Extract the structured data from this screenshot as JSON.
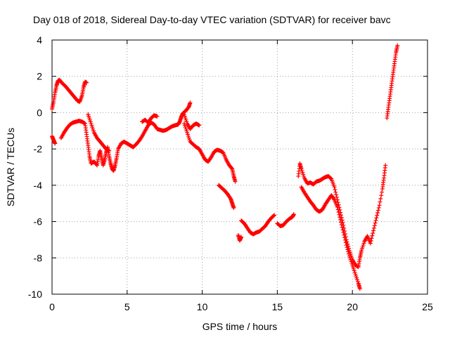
{
  "chart_data": {
    "type": "scatter",
    "title": "Day 018 of 2018, Sidereal Day-to-day VTEC variation (SDTVAR) for receiver bavc",
    "xlabel": "GPS time / hours",
    "ylabel": "SDTVAR / TECUs",
    "xlim": [
      0,
      25
    ],
    "ylim": [
      -10,
      4
    ],
    "xticks": [
      0,
      5,
      10,
      15,
      20,
      25
    ],
    "yticks": [
      -10,
      -8,
      -6,
      -4,
      -2,
      0,
      2,
      4
    ],
    "xtick_labels": [
      "0",
      "5",
      "10",
      "15",
      "20",
      "25"
    ],
    "ytick_labels": [
      "-10",
      "-8",
      "-6",
      "-4",
      "-2",
      "0",
      "2",
      "4"
    ],
    "grid": true,
    "marker": "+",
    "series": [
      {
        "name": "SDTVAR",
        "color": "#ff0000",
        "segments": [
          [
            [
              0.0,
              0.2
            ],
            [
              0.1,
              0.6
            ],
            [
              0.2,
              1.1
            ],
            [
              0.3,
              1.5
            ],
            [
              0.4,
              1.75
            ],
            [
              0.5,
              1.8
            ],
            [
              0.7,
              1.6
            ],
            [
              0.9,
              1.45
            ],
            [
              1.1,
              1.25
            ],
            [
              1.3,
              1.05
            ],
            [
              1.5,
              0.85
            ],
            [
              1.7,
              0.65
            ],
            [
              1.85,
              0.6
            ],
            [
              2.0,
              0.95
            ],
            [
              2.1,
              1.4
            ],
            [
              2.2,
              1.7
            ],
            [
              2.3,
              1.65
            ]
          ],
          [
            [
              0.0,
              -1.3
            ],
            [
              0.1,
              -1.5
            ],
            [
              0.2,
              -1.7
            ]
          ],
          [
            [
              0.6,
              -1.4
            ],
            [
              0.8,
              -1.1
            ],
            [
              1.0,
              -0.85
            ],
            [
              1.2,
              -0.65
            ],
            [
              1.4,
              -0.55
            ],
            [
              1.6,
              -0.5
            ],
            [
              1.8,
              -0.45
            ],
            [
              2.0,
              -0.5
            ],
            [
              2.2,
              -0.6
            ],
            [
              2.3,
              -1.2
            ],
            [
              2.4,
              -1.8
            ],
            [
              2.5,
              -2.4
            ],
            [
              2.6,
              -2.8
            ],
            [
              2.8,
              -2.7
            ],
            [
              3.0,
              -2.9
            ],
            [
              3.1,
              -2.4
            ],
            [
              3.2,
              -2.1
            ],
            [
              3.3,
              -2.5
            ],
            [
              3.4,
              -2.9
            ],
            [
              3.5,
              -2.6
            ],
            [
              3.6,
              -2.2
            ],
            [
              3.7,
              -1.9
            ],
            [
              3.8,
              -2.4
            ],
            [
              3.9,
              -2.8
            ],
            [
              4.0,
              -3.1
            ],
            [
              4.1,
              -3.2
            ],
            [
              4.2,
              -2.9
            ],
            [
              4.3,
              -2.5
            ],
            [
              4.4,
              -2.0
            ],
            [
              4.6,
              -1.7
            ],
            [
              4.8,
              -1.6
            ],
            [
              5.0,
              -1.7
            ],
            [
              5.2,
              -1.8
            ],
            [
              5.4,
              -1.9
            ],
            [
              5.6,
              -1.75
            ],
            [
              5.8,
              -1.55
            ],
            [
              6.0,
              -1.3
            ],
            [
              6.2,
              -1.0
            ],
            [
              6.4,
              -0.7
            ],
            [
              6.6,
              -0.55
            ],
            [
              6.8,
              -0.65
            ],
            [
              7.0,
              -0.9
            ],
            [
              7.2,
              -0.95
            ],
            [
              7.4,
              -1.0
            ],
            [
              7.6,
              -0.95
            ],
            [
              7.8,
              -0.85
            ],
            [
              8.0,
              -0.75
            ],
            [
              8.2,
              -0.7
            ],
            [
              8.4,
              -0.65
            ],
            [
              8.5,
              -0.5
            ],
            [
              8.6,
              -0.25
            ],
            [
              8.7,
              -0.05
            ],
            [
              8.9,
              0.1
            ],
            [
              9.1,
              0.3
            ],
            [
              9.2,
              0.55
            ]
          ],
          [
            [
              2.4,
              -0.1
            ],
            [
              2.6,
              -0.6
            ],
            [
              2.8,
              -1.1
            ],
            [
              3.0,
              -1.4
            ],
            [
              3.2,
              -1.6
            ],
            [
              3.4,
              -1.8
            ],
            [
              3.6,
              -2.0
            ],
            [
              3.8,
              -2.1
            ]
          ],
          [
            [
              6.0,
              -0.5
            ],
            [
              6.2,
              -0.4
            ],
            [
              6.4,
              -0.55
            ],
            [
              6.6,
              -0.3
            ],
            [
              6.8,
              -0.15
            ],
            [
              7.0,
              -0.2
            ]
          ],
          [
            [
              8.8,
              -0.1
            ],
            [
              9.0,
              -0.6
            ],
            [
              9.2,
              -0.9
            ],
            [
              9.4,
              -0.7
            ],
            [
              9.6,
              -0.6
            ],
            [
              9.8,
              -0.7
            ]
          ],
          [
            [
              8.8,
              -0.6
            ],
            [
              9.0,
              -1.1
            ],
            [
              9.2,
              -1.6
            ],
            [
              9.4,
              -1.75
            ],
            [
              9.6,
              -1.9
            ],
            [
              9.8,
              -2.0
            ],
            [
              10.0,
              -2.3
            ],
            [
              10.2,
              -2.6
            ],
            [
              10.4,
              -2.7
            ],
            [
              10.6,
              -2.45
            ],
            [
              10.8,
              -2.15
            ],
            [
              11.0,
              -2.05
            ],
            [
              11.2,
              -2.1
            ],
            [
              11.4,
              -2.2
            ],
            [
              11.6,
              -2.6
            ],
            [
              11.8,
              -2.9
            ],
            [
              12.0,
              -3.1
            ],
            [
              12.1,
              -3.5
            ],
            [
              12.2,
              -3.8
            ]
          ],
          [
            [
              11.1,
              -4.0
            ],
            [
              11.3,
              -4.15
            ],
            [
              11.5,
              -4.3
            ],
            [
              11.7,
              -4.5
            ],
            [
              11.9,
              -4.75
            ],
            [
              12.0,
              -5.0
            ],
            [
              12.1,
              -5.25
            ]
          ],
          [
            [
              12.4,
              -6.75
            ],
            [
              12.5,
              -7.05
            ],
            [
              12.6,
              -6.85
            ]
          ],
          [
            [
              12.6,
              -5.95
            ],
            [
              12.8,
              -6.1
            ],
            [
              13.0,
              -6.35
            ],
            [
              13.2,
              -6.6
            ],
            [
              13.4,
              -6.7
            ],
            [
              13.6,
              -6.6
            ],
            [
              13.8,
              -6.55
            ],
            [
              14.0,
              -6.4
            ],
            [
              14.2,
              -6.25
            ],
            [
              14.4,
              -6.0
            ],
            [
              14.6,
              -5.8
            ],
            [
              14.8,
              -5.65
            ]
          ],
          [
            [
              15.0,
              -6.1
            ],
            [
              15.2,
              -6.25
            ],
            [
              15.4,
              -6.2
            ],
            [
              15.6,
              -6.0
            ],
            [
              15.8,
              -5.85
            ],
            [
              16.0,
              -5.75
            ],
            [
              16.1,
              -5.6
            ]
          ],
          [
            [
              16.4,
              -3.5
            ],
            [
              16.5,
              -2.8
            ],
            [
              16.6,
              -3.1
            ],
            [
              16.8,
              -3.6
            ],
            [
              17.0,
              -3.9
            ],
            [
              17.2,
              -3.85
            ],
            [
              17.4,
              -3.95
            ],
            [
              17.6,
              -3.8
            ],
            [
              17.8,
              -3.75
            ],
            [
              18.0,
              -3.65
            ],
            [
              18.2,
              -3.55
            ],
            [
              18.4,
              -3.5
            ],
            [
              18.6,
              -3.65
            ],
            [
              18.8,
              -4.1
            ],
            [
              19.0,
              -4.8
            ],
            [
              19.2,
              -5.5
            ],
            [
              19.4,
              -6.2
            ],
            [
              19.6,
              -7.0
            ],
            [
              19.8,
              -7.6
            ],
            [
              20.0,
              -8.1
            ],
            [
              20.2,
              -8.4
            ],
            [
              20.4,
              -8.5
            ],
            [
              20.5,
              -8.0
            ],
            [
              20.6,
              -7.6
            ],
            [
              20.8,
              -7.1
            ],
            [
              21.0,
              -6.8
            ],
            [
              21.2,
              -7.2
            ],
            [
              21.4,
              -6.5
            ],
            [
              21.6,
              -5.8
            ],
            [
              21.8,
              -5.1
            ],
            [
              22.0,
              -4.2
            ],
            [
              22.1,
              -3.6
            ],
            [
              22.2,
              -2.9
            ]
          ],
          [
            [
              16.6,
              -4.1
            ],
            [
              16.8,
              -4.4
            ],
            [
              17.0,
              -4.65
            ],
            [
              17.2,
              -4.9
            ],
            [
              17.4,
              -5.1
            ],
            [
              17.6,
              -5.35
            ],
            [
              17.8,
              -5.45
            ],
            [
              18.0,
              -5.35
            ],
            [
              18.2,
              -5.05
            ],
            [
              18.4,
              -4.8
            ],
            [
              18.6,
              -4.55
            ],
            [
              18.8,
              -4.8
            ],
            [
              19.0,
              -5.2
            ],
            [
              19.2,
              -5.9
            ],
            [
              19.4,
              -6.6
            ],
            [
              19.6,
              -7.3
            ],
            [
              19.8,
              -7.9
            ],
            [
              20.0,
              -8.4
            ],
            [
              20.2,
              -8.9
            ],
            [
              20.4,
              -9.4
            ],
            [
              20.5,
              -9.7
            ]
          ],
          [
            [
              22.3,
              -0.3
            ],
            [
              22.4,
              0.3
            ],
            [
              22.5,
              0.9
            ],
            [
              22.6,
              1.5
            ],
            [
              22.7,
              2.1
            ],
            [
              22.8,
              2.7
            ],
            [
              22.9,
              3.3
            ],
            [
              23.0,
              3.7
            ]
          ]
        ]
      }
    ]
  }
}
